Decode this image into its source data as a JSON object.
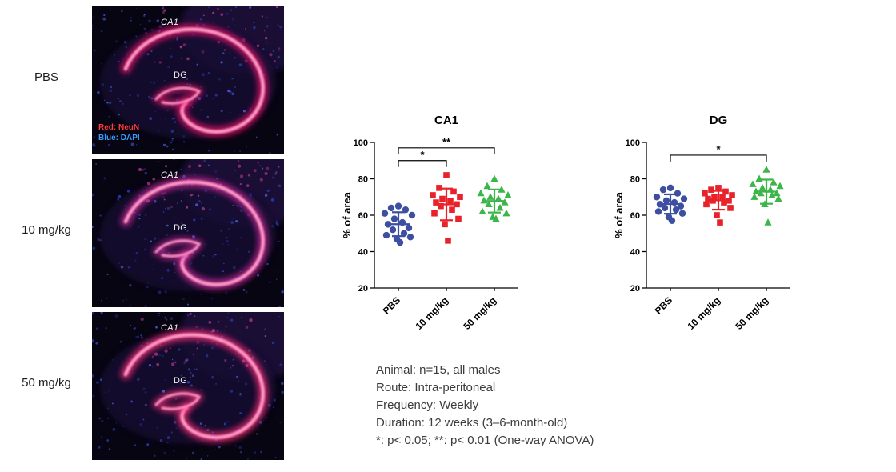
{
  "micro_panel": {
    "rows": [
      {
        "dose_label": "PBS",
        "region_labels": {
          "ca1": "CA1",
          "dg": "DG"
        },
        "legend": [
          {
            "text": "Red: NeuN",
            "color": "#ff3b3b"
          },
          {
            "text": "Blue: DAPI",
            "color": "#3a9bff"
          }
        ],
        "band_color": "#f0146e"
      },
      {
        "dose_label": "10 mg/kg",
        "region_labels": {
          "ca1": "CA1",
          "dg": "DG"
        },
        "band_color": "#d12a9a"
      },
      {
        "dose_label": "50 mg/kg",
        "region_labels": {
          "ca1": "CA1",
          "dg": "DG"
        },
        "band_color": "#ff2d7c"
      }
    ],
    "core_color": "#ff9cc8",
    "dapi_color": "#3a55e0"
  },
  "notes": {
    "lines": [
      "Animal: n=15, all males",
      "Route: Intra-peritoneal",
      "Frequency: Weekly",
      "Duration: 12 weeks (3–6-month-old)",
      "*: p< 0.05; **: p< 0.01 (One-way ANOVA)"
    ]
  },
  "chart_data": [
    {
      "type": "scatter",
      "title": "CA1",
      "xlabel": "",
      "ylabel": "% of area",
      "ylim": [
        20,
        100
      ],
      "yticks": [
        20,
        40,
        60,
        80,
        100
      ],
      "categories": [
        "PBS",
        "10 mg/kg",
        "50 mg/kg"
      ],
      "grid": false,
      "legend_position": "none",
      "error_bars": "mean_sd",
      "series": [
        {
          "name": "PBS",
          "marker": "circle",
          "color": "#3d4fa1",
          "values": [
            65,
            64,
            63,
            61,
            60,
            58,
            56,
            55,
            53,
            52,
            50,
            49,
            48,
            47,
            45
          ]
        },
        {
          "name": "10 mg/kg",
          "marker": "square",
          "color": "#e8222a",
          "values": [
            82,
            75,
            73,
            71,
            70,
            69,
            68,
            67,
            66,
            65,
            63,
            61,
            58,
            55,
            46
          ]
        },
        {
          "name": "50 mg/kg",
          "marker": "triangle",
          "color": "#3cb54a",
          "values": [
            80,
            76,
            74,
            72,
            71,
            70,
            69,
            68,
            67,
            66,
            64,
            62,
            61,
            59,
            58
          ]
        }
      ],
      "significance": [
        {
          "from": 0,
          "to": 1,
          "label": "*",
          "y": 90
        },
        {
          "from": 0,
          "to": 2,
          "label": "**",
          "y": 97
        }
      ]
    },
    {
      "type": "scatter",
      "title": "DG",
      "xlabel": "",
      "ylabel": "% of area",
      "ylim": [
        20,
        100
      ],
      "yticks": [
        20,
        40,
        60,
        80,
        100
      ],
      "categories": [
        "PBS",
        "10 mg/kg",
        "50 mg/kg"
      ],
      "grid": false,
      "legend_position": "none",
      "error_bars": "mean_sd",
      "series": [
        {
          "name": "PBS",
          "marker": "circle",
          "color": "#3d4fa1",
          "values": [
            75,
            74,
            72,
            70,
            69,
            68,
            67,
            66,
            65,
            64,
            63,
            62,
            61,
            59,
            57
          ]
        },
        {
          "name": "10 mg/kg",
          "marker": "square",
          "color": "#e8222a",
          "values": [
            75,
            74,
            73,
            72,
            71,
            70,
            70,
            69,
            68,
            68,
            67,
            66,
            64,
            60,
            56
          ]
        },
        {
          "name": "50 mg/kg",
          "marker": "triangle",
          "color": "#3cb54a",
          "values": [
            85,
            80,
            78,
            77,
            76,
            75,
            74,
            73,
            72,
            72,
            71,
            70,
            69,
            66,
            56
          ]
        }
      ],
      "significance": [
        {
          "from": 0,
          "to": 2,
          "label": "*",
          "y": 93
        }
      ]
    }
  ]
}
